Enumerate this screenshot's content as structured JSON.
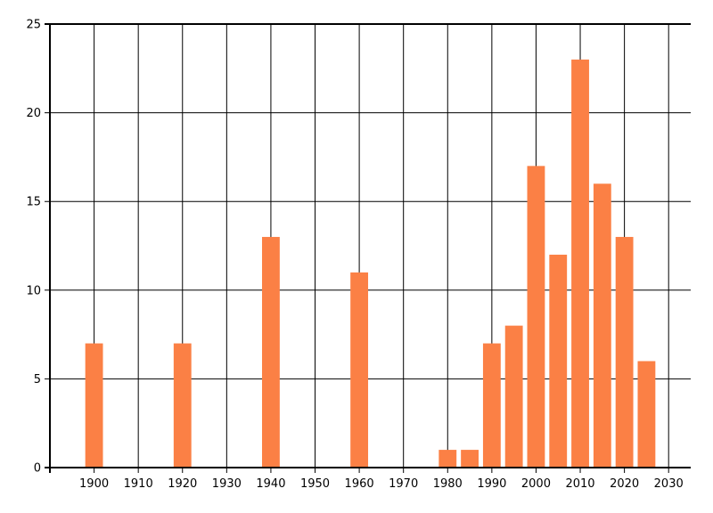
{
  "chart_data": {
    "type": "bar",
    "title": "",
    "xlabel": "",
    "ylabel": "",
    "x": [
      1900,
      1920,
      1940,
      1960,
      1980,
      1985,
      1990,
      1995,
      2000,
      2005,
      2010,
      2015,
      2020,
      2025
    ],
    "values": [
      7,
      7,
      13,
      11,
      1,
      1,
      7,
      8,
      17,
      12,
      23,
      16,
      13,
      6
    ],
    "xlim": [
      1890,
      2035
    ],
    "ylim": [
      0,
      25
    ],
    "x_gridlines": [
      1890,
      1900,
      1910,
      1920,
      1930,
      1940,
      1950,
      1960,
      1970,
      1980,
      1990,
      2000,
      2010,
      2020,
      2030
    ],
    "x_tick_labels": [
      "1900",
      "1910",
      "1920",
      "1930",
      "1940",
      "1950",
      "1960",
      "1970",
      "1980",
      "1990",
      "2000",
      "2010",
      "2020",
      "2030"
    ],
    "x_tick_values": [
      1900,
      1910,
      1920,
      1930,
      1940,
      1950,
      1960,
      1970,
      1980,
      1990,
      2000,
      2010,
      2020,
      2030
    ],
    "y_ticks": [
      0,
      5,
      10,
      15,
      20,
      25
    ],
    "y_tick_labels": [
      "0",
      "5",
      "10",
      "15",
      "20",
      "25"
    ],
    "bar_width_years": 4,
    "grid": true,
    "legend": false,
    "colors": {
      "bar": "#fb8045",
      "grid": "#000000",
      "axis": "#000000",
      "text": "#000000",
      "background": "#ffffff"
    }
  }
}
